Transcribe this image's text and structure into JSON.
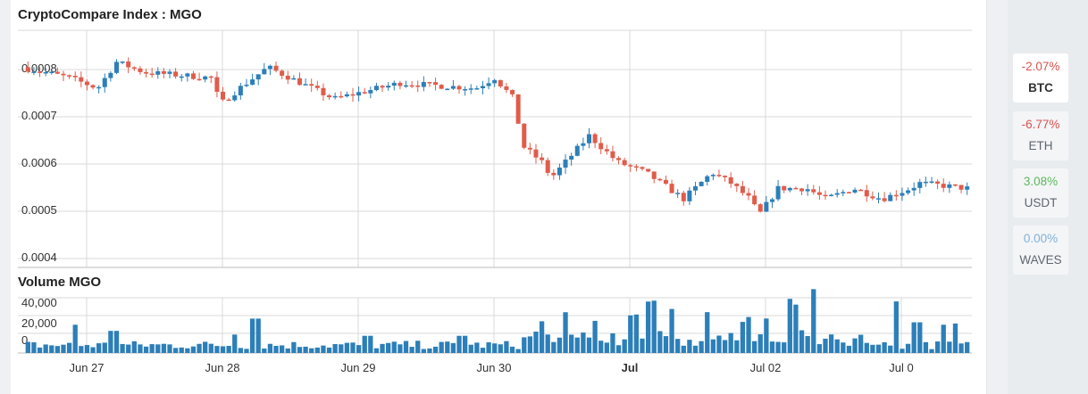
{
  "title": "CryptoCompare Index : MGO",
  "volume_title": "Volume MGO",
  "chart_data": [
    {
      "type": "candlestick",
      "title": "CryptoCompare Index : MGO",
      "yticks": [
        "0.0008",
        "0.0007",
        "0.0006",
        "0.0005",
        "0.0004"
      ],
      "ylim": [
        0.0004,
        0.00085
      ],
      "xticks": [
        "Jun 27",
        "Jun 28",
        "Jun 29",
        "Jun 30",
        "Jul",
        "Jul 02",
        "Jul 0"
      ],
      "up_color": "#2c7fb8",
      "down_color": "#e05c4b",
      "anchors": [
        [
          0,
          0.00078
        ],
        [
          0.05,
          0.00076
        ],
        [
          0.08,
          0.00074
        ],
        [
          0.1,
          0.00079
        ],
        [
          0.13,
          0.00077
        ],
        [
          0.2,
          0.00076
        ],
        [
          0.21,
          0.00071
        ],
        [
          0.23,
          0.00074
        ],
        [
          0.26,
          0.00078
        ],
        [
          0.33,
          0.00072
        ],
        [
          0.4,
          0.00075
        ],
        [
          0.48,
          0.00074
        ],
        [
          0.5,
          0.00076
        ],
        [
          0.52,
          0.00072
        ],
        [
          0.53,
          0.00063
        ],
        [
          0.55,
          0.0006
        ],
        [
          0.56,
          0.00057
        ],
        [
          0.6,
          0.00065
        ],
        [
          0.63,
          0.0006
        ],
        [
          0.66,
          0.00058
        ],
        [
          0.7,
          0.00053
        ],
        [
          0.73,
          0.00058
        ],
        [
          0.75,
          0.00056
        ],
        [
          0.77,
          0.00053
        ],
        [
          0.78,
          0.0005
        ],
        [
          0.8,
          0.00055
        ],
        [
          0.83,
          0.00055
        ],
        [
          0.85,
          0.00053
        ],
        [
          0.88,
          0.00055
        ],
        [
          0.91,
          0.00053
        ],
        [
          0.94,
          0.00055
        ],
        [
          0.95,
          0.00056
        ],
        [
          1,
          0.00055
        ]
      ],
      "candles": 160
    },
    {
      "type": "bar",
      "title": "Volume MGO",
      "yticks": [
        "40,000",
        "20,000",
        "0"
      ],
      "ylim": [
        0,
        45000
      ],
      "xticks": [
        "Jun 27",
        "Jun 28",
        "Jun 29",
        "Jun 30",
        "Jul",
        "Jul 02",
        "Jul 0"
      ],
      "bar_color": "#2c7fb8",
      "peaks": [
        [
          0.05,
          23000
        ],
        [
          0.09,
          18000
        ],
        [
          0.22,
          15000
        ],
        [
          0.24,
          28000
        ],
        [
          0.36,
          14000
        ],
        [
          0.46,
          14000
        ],
        [
          0.54,
          17000
        ],
        [
          0.57,
          33000
        ],
        [
          0.6,
          24000
        ],
        [
          0.64,
          28000
        ],
        [
          0.66,
          37000
        ],
        [
          0.68,
          30000
        ],
        [
          0.72,
          32000
        ],
        [
          0.76,
          25000
        ],
        [
          0.78,
          28000
        ],
        [
          0.81,
          38000
        ],
        [
          0.83,
          44000
        ],
        [
          0.92,
          42000
        ],
        [
          0.94,
          25000
        ],
        [
          0.97,
          23000
        ],
        [
          0.98,
          24000
        ]
      ],
      "bars": 160
    }
  ],
  "sidebar": {
    "coins": [
      {
        "change": "-2.07%",
        "symbol": "BTC",
        "color": "#d9534f",
        "active": true
      },
      {
        "change": "-6.77%",
        "symbol": "ETH",
        "color": "#d9534f",
        "active": false
      },
      {
        "change": "3.08%",
        "symbol": "USDT",
        "color": "#5cb85c",
        "active": false
      },
      {
        "change": "0.00%",
        "symbol": "WAVES",
        "color": "#7fb0d8",
        "active": false
      }
    ]
  }
}
